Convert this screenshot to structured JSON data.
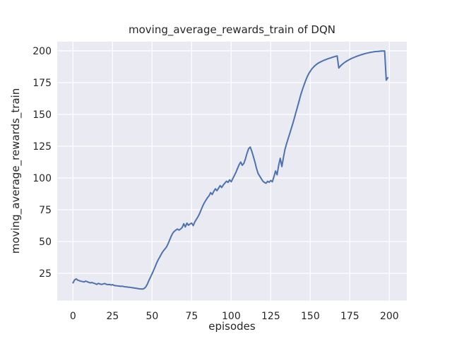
{
  "chart_data": {
    "type": "line",
    "title": "moving_average_rewards_train of DQN",
    "xlabel": "episodes",
    "ylabel": "moving_average_rewards_train",
    "x": "episode index 0-199",
    "xticks": [
      0,
      25,
      50,
      75,
      100,
      125,
      150,
      175,
      200
    ],
    "yticks": [
      25,
      50,
      75,
      100,
      125,
      150,
      175,
      200
    ],
    "xlim": [
      -10,
      211
    ],
    "ylim": [
      3.5,
      207.2
    ],
    "grid": true,
    "legend": false,
    "style": {
      "axes_bg": "#EAEAF2",
      "grid_color": "#FFFFFF",
      "text_color": "#262626",
      "line_color": "#4C72B0",
      "line_width": 2
    },
    "series": [
      {
        "name": "moving_average_rewards_train",
        "color": "#4C72B0",
        "values": [
          17.5,
          19.8,
          20.6,
          19.6,
          19.2,
          18.8,
          18.5,
          18.2,
          18.9,
          18.4,
          17.9,
          17.5,
          17.8,
          17.3,
          16.9,
          16.3,
          17.1,
          16.6,
          16.3,
          16.6,
          17.0,
          16.4,
          16.1,
          16.3,
          15.8,
          16.1,
          15.5,
          15.3,
          15.1,
          15.0,
          14.8,
          14.9,
          14.6,
          14.4,
          14.3,
          14.1,
          14.0,
          13.8,
          13.6,
          13.4,
          13.2,
          13.0,
          12.8,
          12.7,
          12.6,
          13.1,
          14.3,
          16.5,
          19.5,
          22.0,
          24.8,
          27.5,
          30.5,
          33.5,
          36.0,
          38.2,
          40.5,
          42.5,
          44.0,
          45.5,
          48.0,
          51.0,
          54.0,
          56.5,
          58.0,
          59.0,
          59.8,
          59.0,
          59.8,
          61.0,
          64.0,
          61.5,
          64.5,
          62.8,
          63.8,
          64.5,
          62.5,
          65.5,
          67.5,
          69.5,
          72.0,
          75.0,
          78.0,
          80.5,
          82.5,
          84.5,
          86.0,
          88.5,
          87.0,
          89.5,
          91.5,
          90.0,
          92.0,
          94.0,
          92.5,
          94.5,
          96.0,
          97.5,
          96.5,
          98.5,
          97.0,
          99.5,
          102.0,
          104.5,
          107.5,
          110.5,
          112.5,
          110.0,
          111.5,
          115.0,
          119.5,
          123.0,
          124.3,
          121.0,
          117.0,
          112.5,
          107.5,
          103.5,
          101.5,
          99.5,
          97.5,
          96.5,
          95.8,
          97.4,
          96.6,
          98.0,
          97.0,
          101.0,
          105.5,
          102.5,
          110.0,
          115.5,
          109.0,
          116.0,
          122.5,
          127.0,
          131.0,
          135.0,
          139.0,
          143.0,
          147.5,
          152.0,
          156.5,
          161.0,
          165.5,
          169.5,
          173.0,
          176.5,
          179.5,
          182.0,
          184.0,
          185.8,
          187.2,
          188.4,
          189.4,
          190.3,
          191.0,
          191.6,
          192.2,
          192.7,
          193.2,
          193.7,
          194.1,
          194.5,
          194.9,
          195.3,
          195.7,
          196.0,
          186.5,
          188.0,
          189.2,
          190.2,
          191.1,
          191.9,
          192.6,
          193.3,
          193.9,
          194.5,
          195.0,
          195.5,
          196.0,
          196.4,
          196.8,
          197.2,
          197.6,
          197.9,
          198.2,
          198.5,
          198.8,
          199.0,
          199.2,
          199.4,
          199.5,
          199.6,
          199.7,
          199.8,
          199.8,
          199.9,
          177.0,
          178.8
        ]
      }
    ]
  }
}
